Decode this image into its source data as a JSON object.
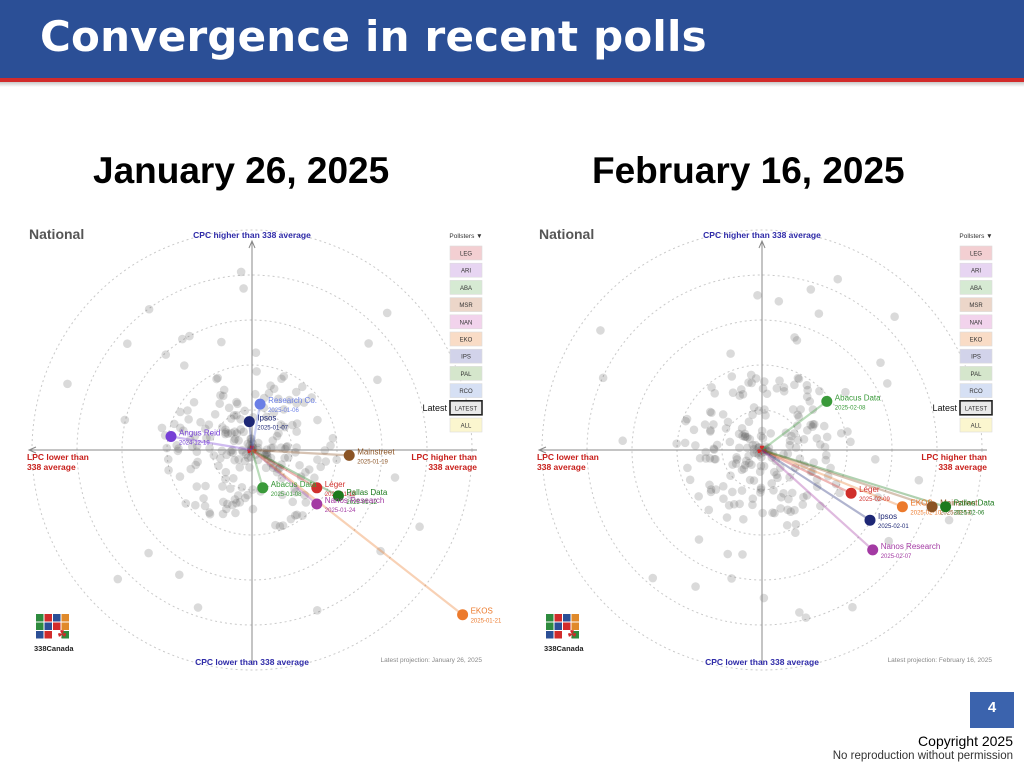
{
  "slide": {
    "title": "Convergence in recent polls",
    "page_number": "4",
    "copyright": "Copyright 2025",
    "no_reproduction": "No reproduction without permission"
  },
  "colors": {
    "title_bar": "#2b4f96",
    "title_underline": "#d12b2b",
    "axis_top_bottom": "#2e2aa8",
    "axis_left_right": "#c8201c"
  },
  "chart_data": [
    {
      "type": "scatter",
      "date_heading": "January 26, 2025",
      "panel_title": "National",
      "axis_labels": {
        "top": "CPC higher than 338 average",
        "bottom": "CPC lower than 338 average",
        "left": [
          "LPC lower than",
          "338 average"
        ],
        "right": [
          "LPC higher than",
          "338 average"
        ]
      },
      "footer": "Latest projection: January 26, 2025",
      "logo_text": "338Canada",
      "legend_title": "Pollsters ▼",
      "legend": [
        {
          "label": "LEG",
          "color": "#f3cfd2"
        },
        {
          "label": "ARI",
          "color": "#e7d5f2"
        },
        {
          "label": "ABA",
          "color": "#d6ead3"
        },
        {
          "label": "MSR",
          "color": "#ecd6c9"
        },
        {
          "label": "NAN",
          "color": "#f2d3ec"
        },
        {
          "label": "EKO",
          "color": "#f9dcc6"
        },
        {
          "label": "IPS",
          "color": "#d2d3ea"
        },
        {
          "label": "PAL",
          "color": "#d5e6cc"
        },
        {
          "label": "RCO",
          "color": "#d6e0f4"
        },
        {
          "label": "LATEST",
          "color": "#e9e9e9",
          "selected": true
        },
        {
          "label": "ALL",
          "color": "#fbf6cf"
        }
      ],
      "latest_label": "Latest",
      "series": [
        {
          "name": "Research Co.",
          "date": "2025-01-06",
          "x": 0.3,
          "y": 1.7,
          "color": "#6b7fe6"
        },
        {
          "name": "Ipsos",
          "date": "2025-01-07",
          "x": -0.1,
          "y": 1.05,
          "color": "#1d2775"
        },
        {
          "name": "Angus Reid",
          "date": "2024-12-19",
          "x": -3.0,
          "y": 0.5,
          "color": "#7740d6"
        },
        {
          "name": "Mainstreet",
          "date": "2025-01-19",
          "x": 3.6,
          "y": -0.2,
          "color": "#8b5425"
        },
        {
          "name": "Léger",
          "date": "2025-01-12",
          "x": 2.4,
          "y": -1.4,
          "color": "#d0302c"
        },
        {
          "name": "Pallas Data",
          "date": "2025-01-12",
          "x": 3.2,
          "y": -1.7,
          "color": "#1d7a1d"
        },
        {
          "name": "Nanos Research",
          "date": "2025-01-24",
          "x": 2.4,
          "y": -2.0,
          "color": "#a33aa3"
        },
        {
          "name": "Abacus Data",
          "date": "2025-01-08",
          "x": 0.4,
          "y": -1.4,
          "color": "#3a9a3a"
        },
        {
          "name": "EKOS",
          "date": "2025-01-21",
          "x": 7.8,
          "y": -6.1,
          "color": "#ec7a2c"
        }
      ]
    },
    {
      "type": "scatter",
      "date_heading": "February 16, 2025",
      "panel_title": "National",
      "axis_labels": {
        "top": "CPC higher than 338 average",
        "bottom": "CPC lower than 338 average",
        "left": [
          "LPC lower than",
          "338 average"
        ],
        "right": [
          "LPC higher than",
          "338 average"
        ]
      },
      "footer": "Latest projection: February 16, 2025",
      "logo_text": "338Canada",
      "legend_title": "Pollsters ▼",
      "legend": [
        {
          "label": "LEG",
          "color": "#f3cfd2"
        },
        {
          "label": "ARI",
          "color": "#e7d5f2"
        },
        {
          "label": "ABA",
          "color": "#d6ead3"
        },
        {
          "label": "MSR",
          "color": "#ecd6c9"
        },
        {
          "label": "NAN",
          "color": "#f2d3ec"
        },
        {
          "label": "EKO",
          "color": "#f9dcc6"
        },
        {
          "label": "IPS",
          "color": "#d2d3ea"
        },
        {
          "label": "PAL",
          "color": "#d5e6cc"
        },
        {
          "label": "RCO",
          "color": "#d6e0f4"
        },
        {
          "label": "LATEST",
          "color": "#e9e9e9",
          "selected": true
        },
        {
          "label": "ALL",
          "color": "#fbf6cf"
        }
      ],
      "latest_label": "Latest",
      "series": [
        {
          "name": "Abacus Data",
          "date": "2025-02-08",
          "x": 2.4,
          "y": 1.8,
          "color": "#3a9a3a"
        },
        {
          "name": "Léger",
          "date": "2025-02-09",
          "x": 3.3,
          "y": -1.6,
          "color": "#d0302c"
        },
        {
          "name": "EKOS",
          "date": "2025-02-10",
          "x": 5.2,
          "y": -2.1,
          "color": "#ec7a2c"
        },
        {
          "name": "Mainstreet",
          "date": "2025-02-13",
          "x": 6.3,
          "y": -2.1,
          "color": "#8b5425"
        },
        {
          "name": "Pallas Data",
          "date": "2025-02-06",
          "x": 6.8,
          "y": -2.1,
          "color": "#1d7a1d"
        },
        {
          "name": "Ipsos",
          "date": "2025-02-01",
          "x": 4.0,
          "y": -2.6,
          "color": "#1d2775"
        },
        {
          "name": "Nanos Research",
          "date": "2025-02-07",
          "x": 4.1,
          "y": -3.7,
          "color": "#a33aa3"
        }
      ]
    }
  ]
}
